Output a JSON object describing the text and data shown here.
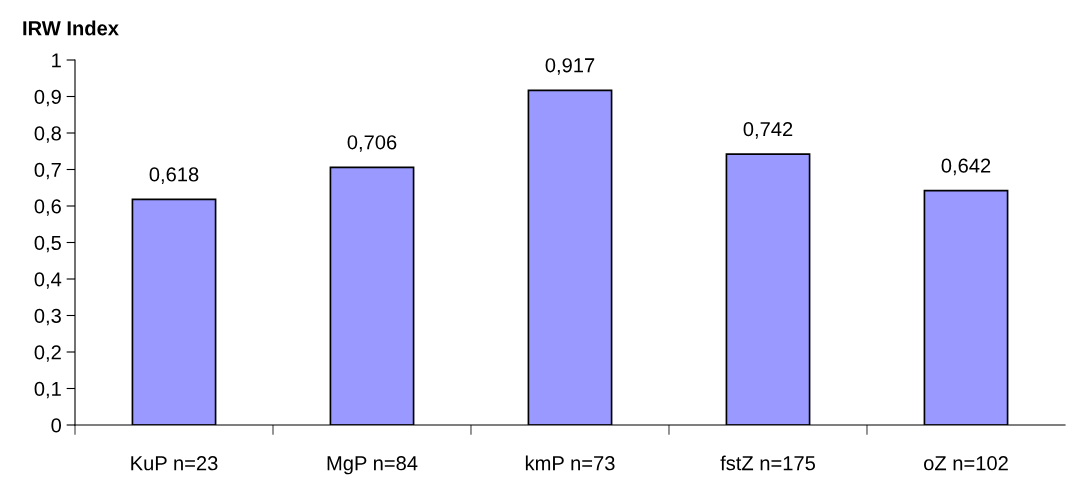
{
  "chart_data": {
    "type": "bar",
    "ylabel": "IRW Index",
    "categories": [
      "KuP n=23",
      "MgP n=84",
      "kmP n=73",
      "fstZ n=175",
      "oZ n=102"
    ],
    "values": [
      0.618,
      0.706,
      0.917,
      0.742,
      0.642
    ],
    "value_labels": [
      "0,618",
      "0,706",
      "0,917",
      "0,742",
      "0,642"
    ],
    "color": "#9999ff",
    "ylim": [
      0,
      1
    ],
    "yticks": [
      0,
      {
        "value": 0.1,
        "label": "0,1"
      },
      {
        "value": 0.2,
        "label": "0,2"
      },
      {
        "value": 0.3,
        "label": "0,3"
      },
      {
        "value": 0.4,
        "label": "0,4"
      },
      {
        "value": 0.5,
        "label": "0,5"
      },
      {
        "value": 0.6,
        "label": "0,6"
      },
      {
        "value": 0.7,
        "label": "0,7"
      },
      {
        "value": 0.8,
        "label": "0,8"
      },
      {
        "value": 0.9,
        "label": "0,9"
      },
      1
    ],
    "grid": false
  }
}
